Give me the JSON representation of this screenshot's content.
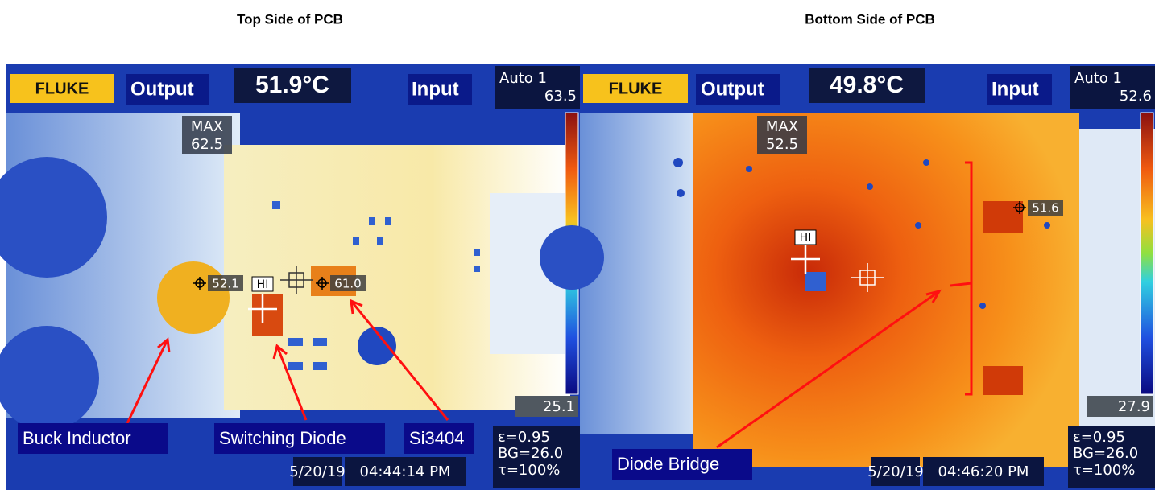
{
  "panels": [
    {
      "caption": "Top Side of PCB",
      "brand": "FLUKE",
      "left_label": "Output",
      "center_temp": "51.9°C",
      "right_label": "Input",
      "palette_mode": "Auto 1",
      "scale_max": "63.5",
      "scale_min": "25.1",
      "max_label": "MAX",
      "max_value": "62.5",
      "hi_label": "HI",
      "spots": [
        "52.1",
        "61.0"
      ],
      "emissivity": "ε=0.95",
      "background": "BG=26.0",
      "transmission": "τ=100%",
      "date": "5/20/19",
      "time": "04:44:14 PM",
      "annotations": [
        "Buck Inductor",
        "Switching Diode",
        "Si3404"
      ]
    },
    {
      "caption": "Bottom Side of PCB",
      "brand": "FLUKE",
      "left_label": "Output",
      "center_temp": "49.8°C",
      "right_label": "Input",
      "palette_mode": "Auto 1",
      "scale_max": "52.6",
      "scale_min": "27.9",
      "max_label": "MAX",
      "max_value": "52.5",
      "hi_label": "HI",
      "spots": [
        "51.6"
      ],
      "emissivity": "ε=0.95",
      "background": "BG=26.0",
      "transmission": "τ=100%",
      "date": "5/20/19",
      "time": "04:46:20 PM",
      "annotations": [
        "Diode Bridge"
      ]
    }
  ]
}
